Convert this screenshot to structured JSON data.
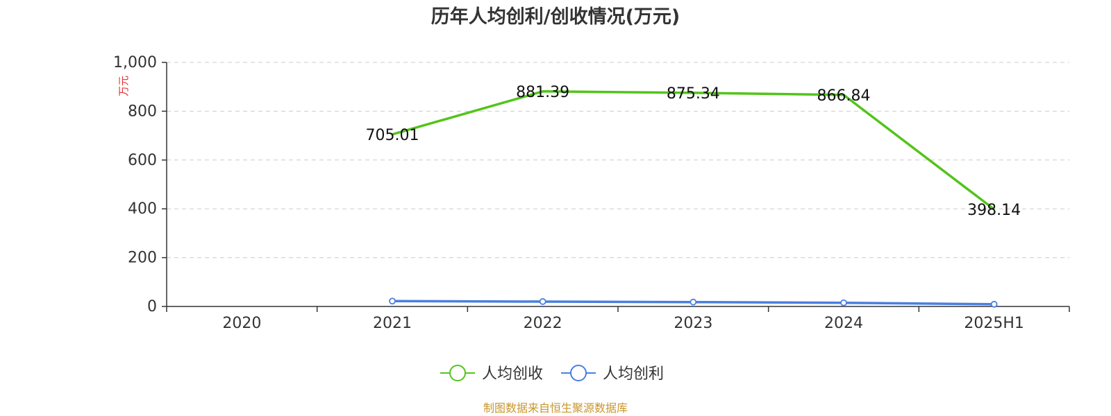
{
  "chart_data": {
    "type": "line",
    "title": "历年人均创利/创收情况(万元)",
    "ylabel": "万元",
    "categories": [
      "2020",
      "2021",
      "2022",
      "2023",
      "2024",
      "2025H1"
    ],
    "ylim": [
      0,
      1000
    ],
    "yticks": [
      0,
      200,
      400,
      600,
      800,
      1000
    ],
    "ytick_labels": [
      "0",
      "200",
      "400",
      "600",
      "800",
      "1,000"
    ],
    "grid": true,
    "legend_position": "bottom-center",
    "series": [
      {
        "name": "人均创收",
        "color": "#52c41a",
        "values": [
          null,
          705.01,
          881.39,
          875.34,
          866.84,
          398.14
        ],
        "labels": [
          "",
          "705.01",
          "881.39",
          "875.34",
          "866.84",
          "398.14"
        ],
        "show_markers": false
      },
      {
        "name": "人均创利",
        "color": "#4a7fe0",
        "values": [
          null,
          22,
          20,
          18,
          15,
          9
        ],
        "labels": [
          "",
          "",
          "",
          "",
          "",
          ""
        ],
        "show_markers": true
      }
    ]
  },
  "source": "制图数据来自恒生聚源数据库"
}
